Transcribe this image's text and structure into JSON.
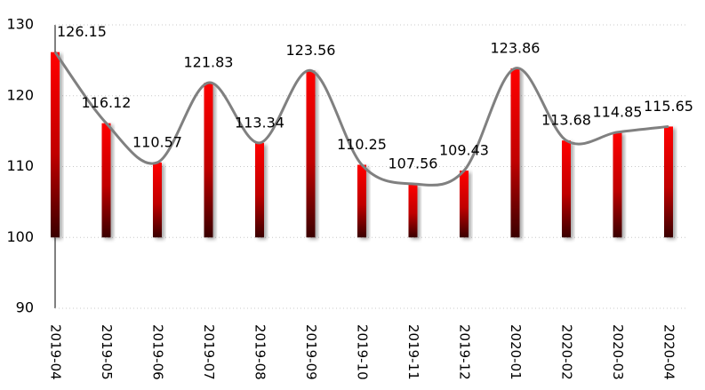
{
  "chart_data": {
    "type": "bar",
    "categories": [
      "2019-04",
      "2019-05",
      "2019-06",
      "2019-07",
      "2019-08",
      "2019-09",
      "2019-10",
      "2019-11",
      "2019-12",
      "2020-01",
      "2020-02",
      "2020-03",
      "2020-04"
    ],
    "values": [
      126.15,
      116.12,
      110.57,
      121.83,
      113.34,
      123.56,
      110.25,
      107.56,
      109.43,
      123.86,
      113.68,
      114.85,
      115.65
    ],
    "bar_base": 100,
    "color": "#ff0000",
    "line_color": "#808080",
    "ylim": [
      90,
      130
    ],
    "yticks": [
      90,
      100,
      110,
      120,
      130
    ],
    "grid": true
  }
}
